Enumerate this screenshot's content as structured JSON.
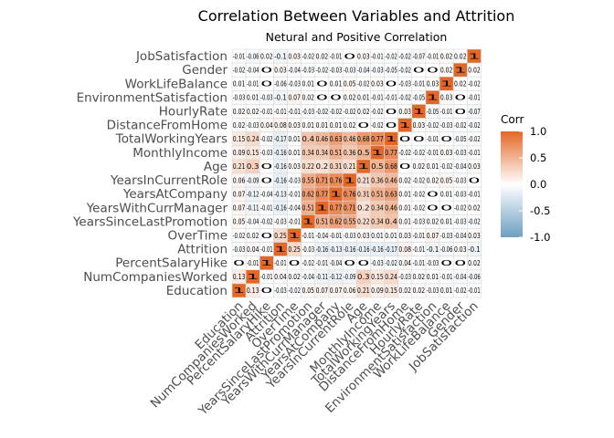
{
  "chart_data": {
    "type": "heatmap",
    "title": "Correlation Between Variables and Attrition",
    "subtitle": "Netural and Positive Correlation",
    "x_labels": [
      "Education",
      "NumCompaniesWorked",
      "PercentSalaryHike",
      "Attrition",
      "OverTime",
      "YearsSinceLastPromotion",
      "YearsWithCurrManager",
      "YearsAtCompany",
      "YearsInCurrentRole",
      "Age",
      "MonthlyIncome",
      "TotalWorkingYears",
      "DistanceFromHome",
      "HourlyRate",
      "EnvironmentSatisfaction",
      "WorkLifeBalance",
      "Gender",
      "JobSatisfaction"
    ],
    "y_labels": [
      "JobSatisfaction",
      "Gender",
      "WorkLifeBalance",
      "EnvironmentSatisfaction",
      "HourlyRate",
      "DistanceFromHome",
      "TotalWorkingYears",
      "MonthlyIncome",
      "Age",
      "YearsInCurrentRole",
      "YearsAtCompany",
      "YearsWithCurrManager",
      "YearsSinceLastPromotion",
      "OverTime",
      "Attrition",
      "PercentSalaryHike",
      "NumCompaniesWorked",
      "Education"
    ],
    "cells": [
      [
        "-0.01",
        "-0.06",
        "0.02",
        "-0.1",
        "0.03",
        "-0.02",
        "0.02",
        "-0.01",
        "0",
        "0.03",
        "-0.01",
        "-0.02",
        "-0.02",
        "-0.07",
        "-0.01",
        "0.02",
        "0.02",
        "1"
      ],
      [
        "-0.02",
        "-0.04",
        "0",
        "0.03",
        "-0.04",
        "-0.03",
        "-0.02",
        "-0.03",
        "-0.03",
        "-0.04",
        "-0.03",
        "-0.05",
        "-0.02",
        "0",
        "0",
        "0.02",
        "1",
        "0.02"
      ],
      [
        "0.01",
        "-0.01",
        "0",
        "-0.06",
        "-0.03",
        "0.01",
        "0",
        "0.01",
        "0.05",
        "-0.02",
        "0.03",
        "0",
        "-0.03",
        "-0.01",
        "0.03",
        "1",
        "0.02",
        "-0.02"
      ],
      [
        "-0.03",
        "0.01",
        "-0.03",
        "-0.1",
        "0.07",
        "0.02",
        "0",
        "0",
        "0.02",
        "0.01",
        "-0.01",
        "-0.01",
        "-0.02",
        "-0.05",
        "1",
        "0.03",
        "0",
        "-0.01"
      ],
      [
        "0.02",
        "0.02",
        "-0.01",
        "-0.01",
        "-0.01",
        "-0.03",
        "-0.02",
        "-0.02",
        "-0.02",
        "0.02",
        "-0.02",
        "0",
        "0.03",
        "1",
        "-0.05",
        "-0.01",
        "0",
        "-0.07"
      ],
      [
        "0.02",
        "-0.03",
        "0.04",
        "0.08",
        "0.03",
        "0.01",
        "0.01",
        "0.01",
        "0.02",
        "0",
        "-0.02",
        "0",
        "1",
        "0.03",
        "-0.02",
        "-0.03",
        "-0.02",
        "-0.02"
      ],
      [
        "0.15",
        "0.24",
        "-0.02",
        "-0.17",
        "0.01",
        "0.4",
        "0.46",
        "0.63",
        "0.46",
        "0.68",
        "0.77",
        "1",
        "0",
        "0",
        "-0.01",
        "0",
        "-0.05",
        "-0.02"
      ],
      [
        "0.09",
        "0.15",
        "-0.03",
        "-0.16",
        "0.01",
        "0.34",
        "0.34",
        "0.51",
        "0.36",
        "0.5",
        "1",
        "0.77",
        "-0.02",
        "-0.02",
        "-0.01",
        "0.03",
        "-0.03",
        "-0.01"
      ],
      [
        "0.21",
        "0.3",
        "0",
        "-0.16",
        "0.03",
        "0.22",
        "0.2",
        "0.31",
        "0.21",
        "1",
        "0.5",
        "0.68",
        "0",
        "0.02",
        "0.01",
        "-0.02",
        "-0.04",
        "0.03"
      ],
      [
        "0.06",
        "-0.09",
        "0",
        "-0.16",
        "-0.03",
        "0.55",
        "0.71",
        "0.76",
        "1",
        "0.21",
        "0.36",
        "0.46",
        "0.02",
        "-0.02",
        "0.02",
        "0.05",
        "-0.03",
        "0"
      ],
      [
        "0.07",
        "-0.12",
        "-0.04",
        "-0.13",
        "-0.01",
        "0.62",
        "0.77",
        "1",
        "0.76",
        "0.31",
        "0.51",
        "0.63",
        "0.01",
        "-0.02",
        "0",
        "0.01",
        "-0.03",
        "-0.01"
      ],
      [
        "0.07",
        "-0.11",
        "-0.01",
        "-0.16",
        "-0.04",
        "0.51",
        "1",
        "0.77",
        "0.71",
        "0.2",
        "0.34",
        "0.46",
        "0.01",
        "-0.02",
        "0",
        "0",
        "-0.02",
        "0.02"
      ],
      [
        "0.05",
        "-0.04",
        "-0.02",
        "-0.03",
        "-0.01",
        "1",
        "0.51",
        "0.62",
        "0.55",
        "0.22",
        "0.34",
        "0.4",
        "0.01",
        "-0.03",
        "0.02",
        "0.01",
        "-0.03",
        "-0.02"
      ],
      [
        "-0.02",
        "0.02",
        "0",
        "0.25",
        "1",
        "-0.01",
        "-0.04",
        "-0.01",
        "-0.03",
        "0.03",
        "0.01",
        "0.01",
        "0.03",
        "-0.01",
        "0.07",
        "-0.03",
        "-0.04",
        "0.03"
      ],
      [
        "-0.03",
        "0.04",
        "-0.01",
        "1",
        "0.25",
        "-0.03",
        "-0.16",
        "-0.13",
        "-0.16",
        "-0.16",
        "-0.16",
        "-0.17",
        "0.08",
        "-0.01",
        "-0.1",
        "-0.06",
        "0.03",
        "-0.1"
      ],
      [
        "0",
        "-0.01",
        "1",
        "-0.01",
        "0",
        "-0.02",
        "-0.01",
        "-0.04",
        "0",
        "0",
        "-0.03",
        "-0.02",
        "0.04",
        "-0.01",
        "-0.03",
        "0",
        "0",
        "0.02"
      ],
      [
        "0.13",
        "1",
        "-0.01",
        "0.04",
        "0.02",
        "-0.04",
        "-0.11",
        "-0.12",
        "-0.09",
        "0.3",
        "0.15",
        "0.24",
        "-0.03",
        "0.02",
        "0.01",
        "-0.01",
        "-0.04",
        "-0.06"
      ],
      [
        "1",
        "0.13",
        "0",
        "-0.03",
        "-0.02",
        "0.05",
        "0.07",
        "0.07",
        "0.06",
        "0.21",
        "0.09",
        "0.15",
        "0.02",
        "0.02",
        "-0.03",
        "0.01",
        "-0.02",
        "-0.01"
      ]
    ],
    "value_range": [
      -1,
      1
    ],
    "legend": {
      "title": "Corr",
      "ticks": [
        "1.0",
        "0.5",
        "0.0",
        "-0.5",
        "-1.0"
      ],
      "tick_values": [
        1,
        0.5,
        0,
        -0.5,
        -1
      ],
      "position": "right"
    },
    "colors": {
      "positive": "#E46726",
      "neutral": "#FFFFFF",
      "negative": "#6D9EC1",
      "cell_border": "#d9d9d9",
      "text": "#000000",
      "axis_text": "#4d4d4d"
    }
  }
}
